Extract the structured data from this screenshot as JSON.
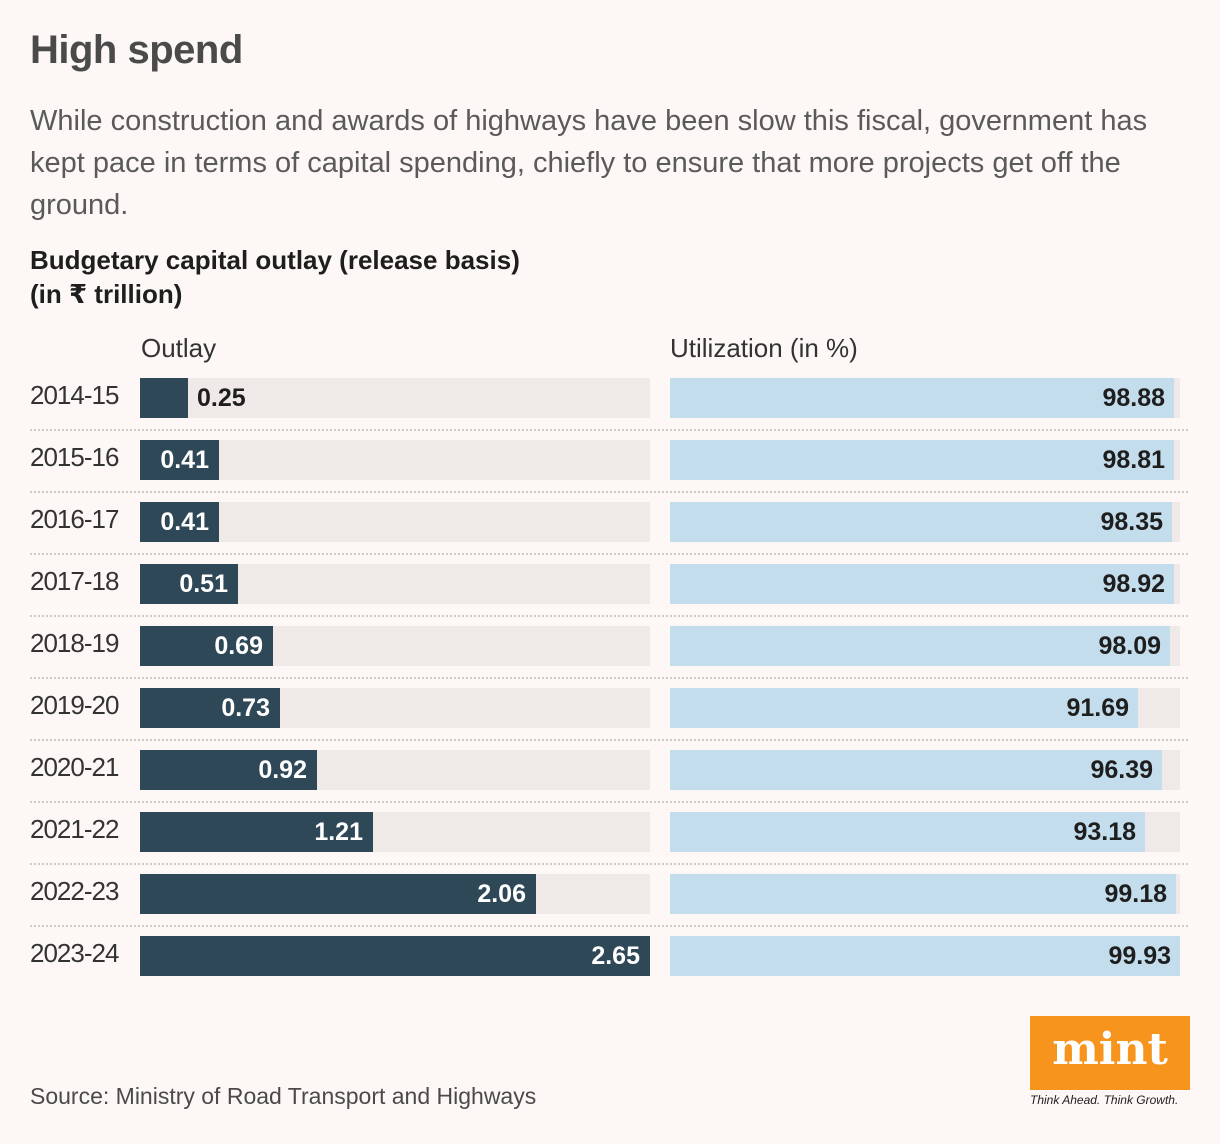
{
  "header": {
    "title": "High spend",
    "subtitle": "While construction and awards of highways have been slow this fiscal, government has kept pace in terms of capital spending, chiefly to ensure that more projects get off the ground."
  },
  "chart_data": {
    "type": "bar",
    "title_line1": "Budgetary capital outlay (release basis)",
    "title_line2": "(in ₹ trillion)",
    "categories": [
      "2014-15",
      "2015-16",
      "2016-17",
      "2017-18",
      "2018-19",
      "2019-20",
      "2020-21",
      "2021-22",
      "2022-23",
      "2023-24"
    ],
    "series": [
      {
        "name": "Outlay",
        "values": [
          0.25,
          0.41,
          0.41,
          0.51,
          0.69,
          0.73,
          0.92,
          1.21,
          2.06,
          2.65
        ],
        "xlim": [
          0,
          2.65
        ]
      },
      {
        "name": "Utilization (in %)",
        "values": [
          98.88,
          98.81,
          98.35,
          98.92,
          98.09,
          91.69,
          96.39,
          93.18,
          99.18,
          99.93
        ],
        "xlim": [
          0,
          100
        ]
      }
    ],
    "orientation": "horizontal",
    "colors": {
      "outlay": "#2f4857",
      "utilization": "#c4ddec",
      "track": "#efe9e8"
    }
  },
  "footer": {
    "source": "Source: Ministry of Road Transport and Highways",
    "logo_text": "mint",
    "tagline": "Think Ahead. Think Growth."
  }
}
